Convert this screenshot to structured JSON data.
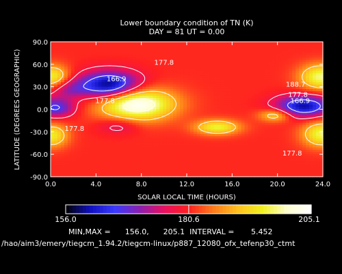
{
  "chart_data": {
    "type": "heatmap",
    "title": "Lower boundary condition of TN (K)",
    "subtitle": "DAY =   81   UT =   0.00",
    "xlabel": "SOLAR LOCAL TIME (HOURS)",
    "ylabel": "LATITUDE (DEGREES GEOGRAPHIC)",
    "xlim": [
      0,
      24
    ],
    "ylim": [
      -90,
      90
    ],
    "x_ticks": [
      "0.0",
      "4.0",
      "8.0",
      "12.0",
      "16.0",
      "20.0",
      "24.0"
    ],
    "y_ticks": [
      "90.0",
      "60.0",
      "30.0",
      "0.0",
      "-30.0",
      "-60.0",
      "-90.0"
    ],
    "x_tick_values": [
      0,
      4,
      8,
      12,
      16,
      20,
      24
    ],
    "y_tick_values": [
      90,
      60,
      30,
      0,
      -30,
      -60,
      -90
    ],
    "contour_labels": [
      {
        "text": "177.8",
        "x": 10.0,
        "y": 63
      },
      {
        "text": "166.9",
        "x": 5.8,
        "y": 41
      },
      {
        "text": "177.8",
        "x": 4.8,
        "y": 12
      },
      {
        "text": "188.7",
        "x": 21.6,
        "y": 34
      },
      {
        "text": "177.8",
        "x": 21.8,
        "y": 20
      },
      {
        "text": "166.9",
        "x": 22.0,
        "y": 12
      },
      {
        "text": "177.8",
        "x": 2.1,
        "y": -25
      },
      {
        "text": "177.8",
        "x": 21.3,
        "y": -58
      }
    ],
    "highs": [
      {
        "x": 7.6,
        "y": 7,
        "value": 205,
        "sx": 2.3,
        "sy": 15
      },
      {
        "x": 23.8,
        "y": 43,
        "value": 198,
        "sx": 1.3,
        "sy": 12
      },
      {
        "x": 0.2,
        "y": 43,
        "value": 196,
        "sx": 1.0,
        "sy": 11
      },
      {
        "x": 23.9,
        "y": -33,
        "value": 197,
        "sx": 1.2,
        "sy": 12
      },
      {
        "x": 0.1,
        "y": -35,
        "value": 195,
        "sx": 1.0,
        "sy": 11
      },
      {
        "x": 14.7,
        "y": -24,
        "value": 196,
        "sx": 1.4,
        "sy": 7
      },
      {
        "x": 19.8,
        "y": -8,
        "value": 193,
        "sx": 1.0,
        "sy": 6
      }
    ],
    "lows": [
      {
        "x": 5.2,
        "y": 32,
        "value": 157,
        "sx": 1.9,
        "sy": 13
      },
      {
        "x": 22.3,
        "y": 4,
        "value": 160,
        "sx": 1.7,
        "sy": 10
      },
      {
        "x": 0.4,
        "y": 2,
        "value": 166,
        "sx": 1.2,
        "sy": 9
      },
      {
        "x": 1.5,
        "y": 27,
        "value": 173,
        "sx": 1.2,
        "sy": 9
      },
      {
        "x": 6.0,
        "y": -22,
        "value": 175,
        "sx": 1.3,
        "sy": 8
      }
    ],
    "colorbar": {
      "min_label": "156.0",
      "mid_label": "180.6",
      "max_label": "205.1",
      "range": [
        156.0,
        205.1
      ],
      "colors": [
        "#000000",
        "#1010c0",
        "#3a3aff",
        "#8a20b0",
        "#e81060",
        "#ff2020",
        "#ff7a1a",
        "#ffc020",
        "#f0f020",
        "#ffffd0",
        "#ffffff"
      ]
    },
    "stats": "MIN,MAX =      156.0,      205.1  INTERVAL =       5.452",
    "path": "/hao/aim3/emery/tiegcm_1.94.2/tiegcm-linux/p887_12080_ofx_tefenp30_ctmt"
  }
}
